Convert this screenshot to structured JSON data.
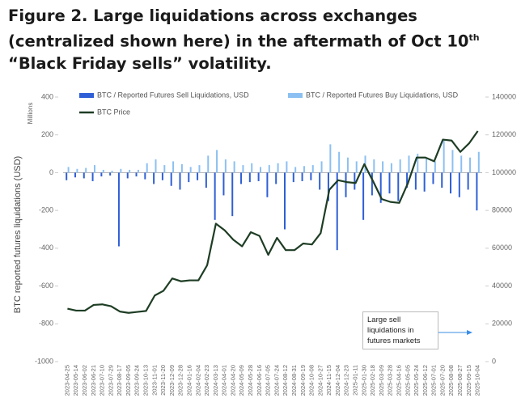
{
  "chart_data": {
    "type": "bar-line",
    "title": {
      "before": "Figure 2. Large liquidations across exchanges (centralized shown here) in the aftermath of Oct 10",
      "superscript": "th",
      "after": " “Black Friday sells” volatility."
    },
    "y_axis_label": "BTC reported futures liquidations (USD)",
    "y_axis_unit": "Millions",
    "annotation": "Large sell liquidations in futures markets",
    "categories": [
      "2023-04-25",
      "2023-05-14",
      "2023-06-02",
      "2023-06-21",
      "2023-07-10",
      "2023-07-29",
      "2023-08-17",
      "2023-09-05",
      "2023-09-24",
      "2023-10-13",
      "2023-11-01",
      "2023-11-20",
      "2023-12-09",
      "2023-12-28",
      "2024-01-16",
      "2024-02-04",
      "2024-02-23",
      "2024-03-13",
      "2024-04-01",
      "2024-04-20",
      "2024-05-09",
      "2024-05-28",
      "2024-06-16",
      "2024-07-05",
      "2024-07-24",
      "2024-08-12",
      "2024-08-31",
      "2024-09-19",
      "2024-10-08",
      "2024-10-27",
      "2024-11-15",
      "2024-12-04",
      "2024-12-23",
      "2025-01-11",
      "2025-01-30",
      "2025-02-18",
      "2025-03-09",
      "2025-03-28",
      "2025-04-16",
      "2025-05-05",
      "2025-05-24",
      "2025-06-12",
      "2025-07-01",
      "2025-07-20",
      "2025-08-08",
      "2025-08-27",
      "2025-09-15",
      "2025-10-04"
    ],
    "series": [
      {
        "name": "BTC / Reported Futures Sell Liquidations, USD",
        "color": "#2f5fd6",
        "kind": "bar",
        "values": [
          -40,
          -25,
          -30,
          -45,
          -20,
          -15,
          -390,
          -30,
          -20,
          -35,
          -60,
          -40,
          -70,
          -90,
          -50,
          -40,
          -80,
          -250,
          -120,
          -230,
          -60,
          -50,
          -45,
          -130,
          -60,
          -300,
          -50,
          -45,
          -40,
          -90,
          -150,
          -410,
          -130,
          -90,
          -250,
          -120,
          -160,
          -110,
          -150,
          -80,
          -90,
          -100,
          -60,
          -80,
          -110,
          -130,
          -90,
          -200
        ]
      },
      {
        "name": "BTC / Reported Futures Buy Liquidations, USD",
        "color": "#8cc0f2",
        "kind": "bar",
        "values": [
          30,
          20,
          25,
          40,
          15,
          10,
          20,
          15,
          15,
          50,
          70,
          40,
          60,
          45,
          30,
          40,
          90,
          120,
          70,
          60,
          40,
          50,
          30,
          40,
          50,
          60,
          30,
          35,
          40,
          60,
          150,
          110,
          80,
          60,
          90,
          70,
          60,
          50,
          70,
          90,
          100,
          80,
          60,
          170,
          120,
          90,
          80,
          110
        ]
      },
      {
        "name": "BTC Price",
        "color": "#1e3d24",
        "kind": "line",
        "axis": "y2",
        "values": [
          28000,
          27000,
          27000,
          30000,
          30300,
          29300,
          26500,
          25800,
          26300,
          26800,
          35000,
          37500,
          44000,
          42500,
          43000,
          43000,
          51000,
          73000,
          69500,
          64500,
          61000,
          68500,
          66500,
          56500,
          65500,
          59000,
          59000,
          62500,
          62000,
          68000,
          91000,
          96000,
          95000,
          94500,
          104500,
          95500,
          86000,
          84500,
          84000,
          94500,
          108000,
          108000,
          106000,
          117500,
          117000,
          111000,
          115500,
          122000
        ]
      }
    ],
    "ylim": [
      -1000,
      400
    ],
    "yticks": [
      -1000,
      -800,
      -600,
      -400,
      -200,
      0,
      200,
      400
    ],
    "y2lim": [
      0,
      140000
    ],
    "y2ticks": [
      0,
      20000,
      40000,
      60000,
      80000,
      100000,
      120000,
      140000
    ]
  }
}
